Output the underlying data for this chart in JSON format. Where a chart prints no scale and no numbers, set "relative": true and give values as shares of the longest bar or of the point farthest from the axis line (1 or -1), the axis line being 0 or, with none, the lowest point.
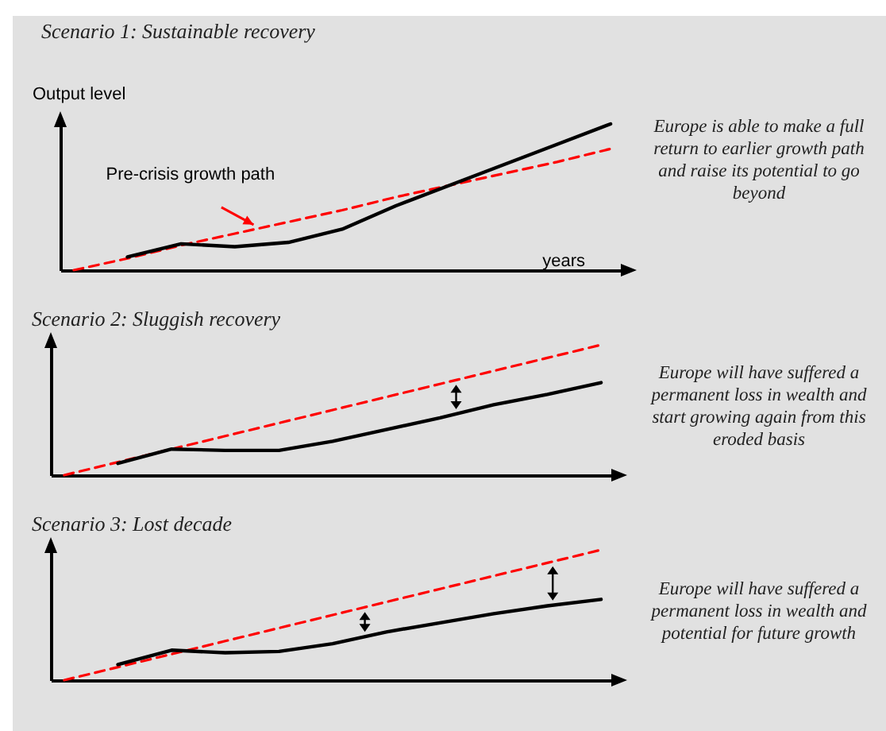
{
  "chart_data": [
    {
      "type": "line",
      "title": "Scenario 1: Sustainable recovery",
      "ylabel": "Output level",
      "xlabel": "years",
      "categories": [
        null,
        null,
        null,
        null,
        null,
        null,
        null,
        null,
        null,
        null,
        null
      ],
      "relative": true,
      "tick_labels": false,
      "marker": "none",
      "series": [
        {
          "name": "Pre-crisis growth path",
          "color": "#ff0000",
          "line_style": "dashed",
          "values": [
            0,
            0.08,
            0.17,
            0.25,
            0.33,
            0.41,
            0.5,
            0.58,
            0.66,
            0.74,
            0.83
          ]
        },
        {
          "color": "#000000",
          "line_style": "solid",
          "values": [
            null,
            0.09,
            0.18,
            0.16,
            0.19,
            0.28,
            0.44,
            0.58,
            0.72,
            0.86,
            1
          ]
        }
      ],
      "annotations": [
        "Europe is able to make a full return to earlier growth path and raise its potential to go beyond"
      ]
    },
    {
      "type": "line",
      "title": "Scenario 2: Sluggish recovery",
      "categories": [
        null,
        null,
        null,
        null,
        null,
        null,
        null,
        null,
        null,
        null,
        null
      ],
      "relative": true,
      "tick_labels": false,
      "marker": "none",
      "series": [
        {
          "color": "#ff0000",
          "line_style": "dashed",
          "values": [
            0,
            0.1,
            0.2,
            0.3,
            0.4,
            0.5,
            0.6,
            0.7,
            0.8,
            0.9,
            1
          ]
        },
        {
          "color": "#000000",
          "line_style": "solid",
          "values": [
            null,
            0.09,
            0.2,
            0.19,
            0.19,
            0.26,
            0.35,
            0.44,
            0.54,
            0.62,
            0.71
          ]
        }
      ],
      "annotations": [
        "Europe will have suffered a permanent loss in wealth and start growing again from this eroded basis"
      ]
    },
    {
      "type": "line",
      "title": "Scenario 3: Lost decade",
      "categories": [
        null,
        null,
        null,
        null,
        null,
        null,
        null,
        null,
        null,
        null,
        null
      ],
      "relative": true,
      "tick_labels": false,
      "marker": "none",
      "series": [
        {
          "color": "#ff0000",
          "line_style": "dashed",
          "values": [
            0,
            0.1,
            0.2,
            0.3,
            0.4,
            0.5,
            0.6,
            0.7,
            0.8,
            0.9,
            1
          ]
        },
        {
          "color": "#000000",
          "line_style": "solid",
          "values": [
            null,
            0.12,
            0.23,
            0.21,
            0.22,
            0.28,
            0.37,
            0.44,
            0.51,
            0.57,
            0.62
          ]
        }
      ],
      "annotations": [
        "Europe will have suffered a permanent loss in wealth and potential for future growth"
      ]
    }
  ]
}
